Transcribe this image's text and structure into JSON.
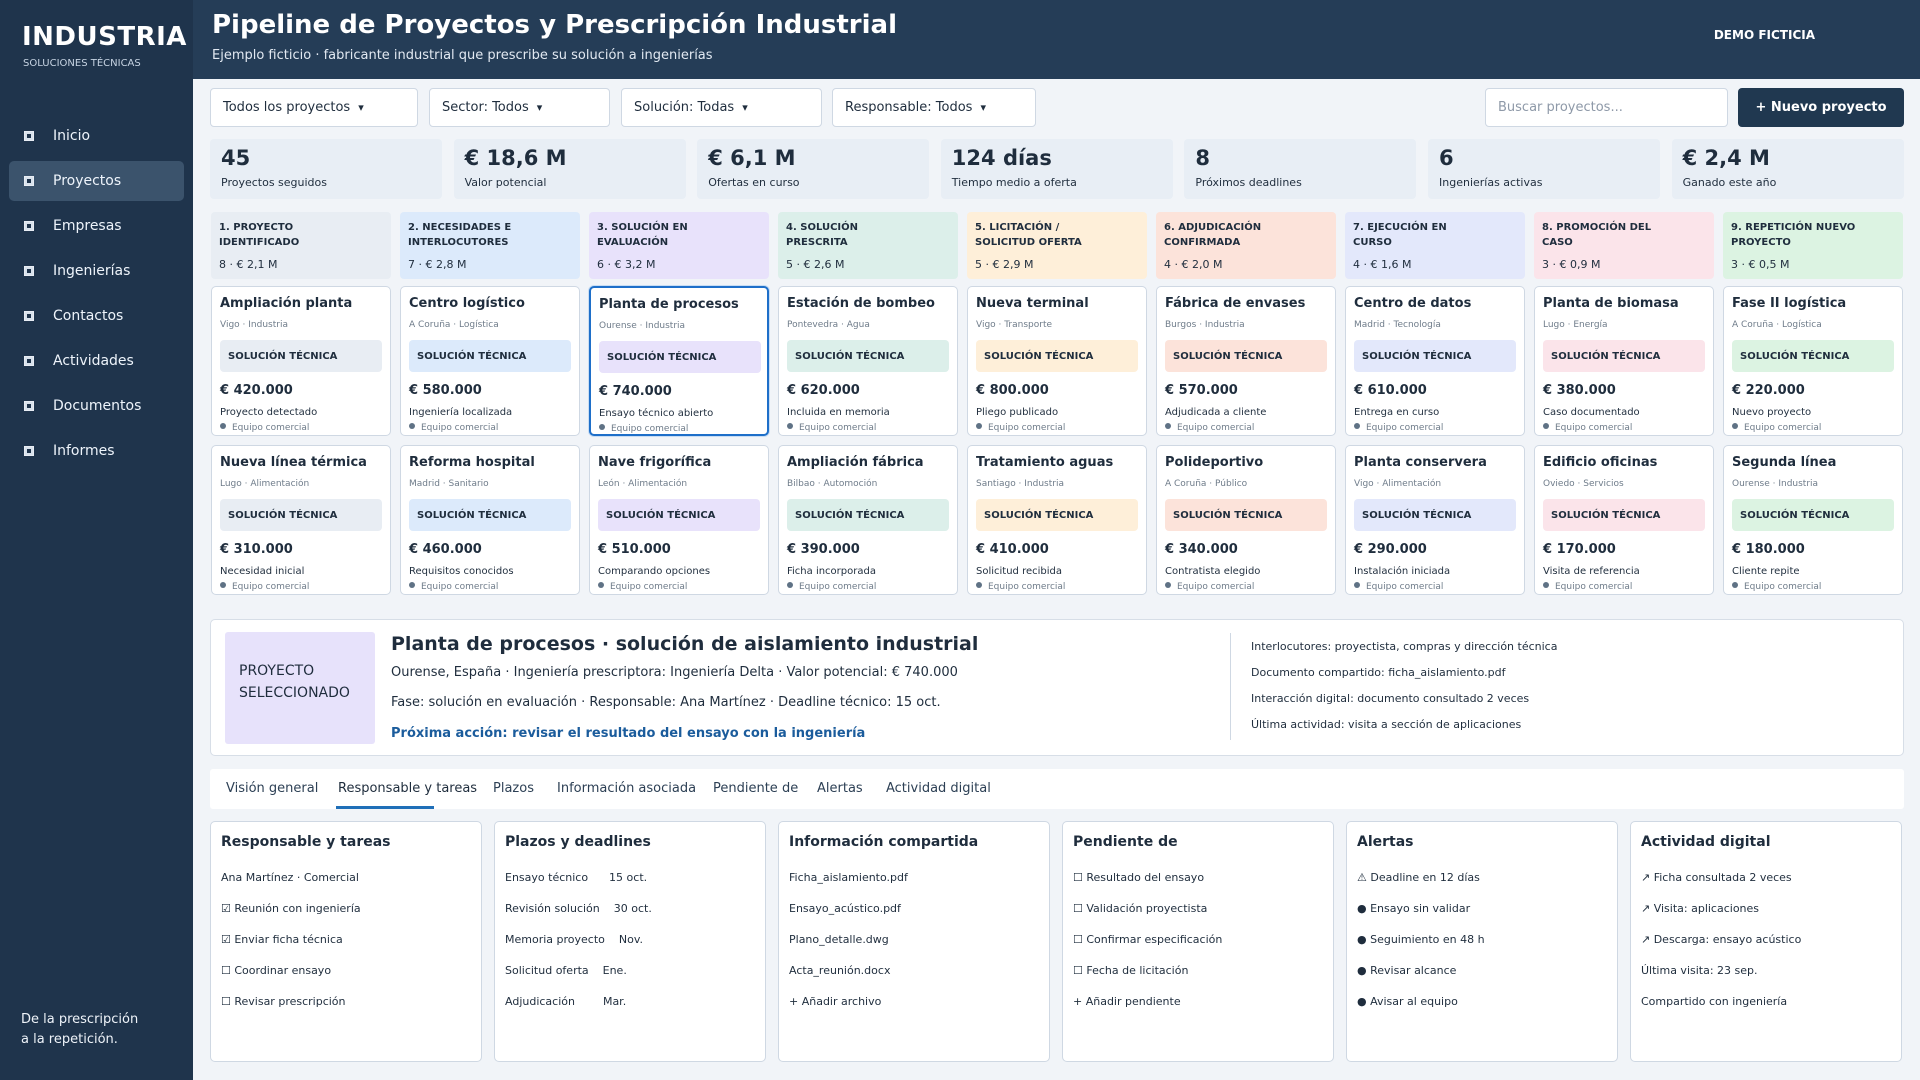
{
  "sidebar": {
    "brand": "INDUSTRIA",
    "brand_sub": "SOLUCIONES TÉCNICAS",
    "items": [
      {
        "label": "Inicio",
        "icon": "square-icon"
      },
      {
        "label": "Proyectos",
        "icon": "square-icon",
        "active": true
      },
      {
        "label": "Empresas",
        "icon": "square-icon"
      },
      {
        "label": "Ingenierías",
        "icon": "square-icon"
      },
      {
        "label": "Contactos",
        "icon": "square-icon"
      },
      {
        "label": "Actividades",
        "icon": "square-icon"
      },
      {
        "label": "Documentos",
        "icon": "square-icon"
      },
      {
        "label": "Informes",
        "icon": "square-icon"
      }
    ],
    "footer": "De la prescripción\na la repetición."
  },
  "header": {
    "title": "Pipeline de Proyectos y Prescripción Industrial",
    "subtitle": "Ejemplo ficticio · fabricante industrial que prescribe su solución a ingenierías",
    "demo": "DEMO FICTICIA"
  },
  "toolbar": {
    "filters": [
      "Todos los proyectos",
      "Sector: Todos",
      "Solución: Todas",
      "Responsable: Todos"
    ],
    "caret": "▾",
    "search_placeholder": "Buscar proyectos...",
    "new_button": "+ Nuevo proyecto"
  },
  "kpis": [
    {
      "value": "45",
      "label": "Proyectos seguidos"
    },
    {
      "value": "€ 18,6 M",
      "label": "Valor potencial"
    },
    {
      "value": "€ 6,1 M",
      "label": "Ofertas en curso"
    },
    {
      "value": "124 días",
      "label": "Tiempo medio a oferta"
    },
    {
      "value": "8",
      "label": "Próximos deadlines"
    },
    {
      "value": "6",
      "label": "Ingenierías activas"
    },
    {
      "value": "€ 2,4 M",
      "label": "Ganado este año"
    }
  ],
  "stages": [
    {
      "name": "1. PROYECTO IDENTIFICADO",
      "meta": "8 · € 2,1 M",
      "color": "#e8edf3",
      "tag": "#e8edf3"
    },
    {
      "name": "2. NECESIDADES E INTERLOCUTORES",
      "meta": "7 · € 2,8 M",
      "color": "#dceafb",
      "tag": "#dceafb"
    },
    {
      "name": "3. SOLUCIÓN EN EVALUACIÓN",
      "meta": "6 · € 3,2 M",
      "color": "#e8e2fb",
      "tag": "#e8e2fb"
    },
    {
      "name": "4. SOLUCIÓN PRESCRITA",
      "meta": "5 · € 2,6 M",
      "color": "#dcefea",
      "tag": "#dcefea"
    },
    {
      "name": "5. LICITACIÓN / SOLICITUD OFERTA",
      "meta": "5 · € 2,9 M",
      "color": "#feefd9",
      "tag": "#feefd9"
    },
    {
      "name": "6. ADJUDICACIÓN CONFIRMADA",
      "meta": "4 · € 2,0 M",
      "color": "#fce3da",
      "tag": "#fce3da"
    },
    {
      "name": "7. EJECUCIÓN EN CURSO",
      "meta": "4 · € 1,6 M",
      "color": "#e3e8fb",
      "tag": "#e3e8fb"
    },
    {
      "name": "8. PROMOCIÓN DEL CASO",
      "meta": "3 · € 0,9 M",
      "color": "#fbe4ea",
      "tag": "#fbe4ea"
    },
    {
      "name": "9. REPETICIÓN NUEVO PROYECTO",
      "meta": "3 · € 0,5 M",
      "color": "#dcf3e2",
      "tag": "#dcf3e2"
    }
  ],
  "cards_row1": [
    {
      "title": "Ampliación planta",
      "loc": "Vigo · Industria",
      "tag": "SOLUCIÓN TÉCNICA",
      "value": "€ 420.000",
      "status": "Proyecto detectado",
      "team": "Equipo comercial"
    },
    {
      "title": "Centro logístico",
      "loc": "A Coruña · Logística",
      "tag": "SOLUCIÓN TÉCNICA",
      "value": "€ 580.000",
      "status": "Ingeniería localizada",
      "team": "Equipo comercial"
    },
    {
      "title": "Planta de procesos",
      "loc": "Ourense · Industria",
      "tag": "SOLUCIÓN TÉCNICA",
      "value": "€ 740.000",
      "status": "Ensayo técnico abierto",
      "team": "Equipo comercial",
      "selected": true
    },
    {
      "title": "Estación de bombeo",
      "loc": "Pontevedra · Agua",
      "tag": "SOLUCIÓN TÉCNICA",
      "value": "€ 620.000",
      "status": "Incluida en memoria",
      "team": "Equipo comercial"
    },
    {
      "title": "Nueva terminal",
      "loc": "Vigo · Transporte",
      "tag": "SOLUCIÓN TÉCNICA",
      "value": "€ 800.000",
      "status": "Pliego publicado",
      "team": "Equipo comercial"
    },
    {
      "title": "Fábrica de envases",
      "loc": "Burgos · Industria",
      "tag": "SOLUCIÓN TÉCNICA",
      "value": "€ 570.000",
      "status": "Adjudicada a cliente",
      "team": "Equipo comercial"
    },
    {
      "title": "Centro de datos",
      "loc": "Madrid · Tecnología",
      "tag": "SOLUCIÓN TÉCNICA",
      "value": "€ 610.000",
      "status": "Entrega en curso",
      "team": "Equipo comercial"
    },
    {
      "title": "Planta de biomasa",
      "loc": "Lugo · Energía",
      "tag": "SOLUCIÓN TÉCNICA",
      "value": "€ 380.000",
      "status": "Caso documentado",
      "team": "Equipo comercial"
    },
    {
      "title": "Fase II logística",
      "loc": "A Coruña · Logística",
      "tag": "SOLUCIÓN TÉCNICA",
      "value": "€ 220.000",
      "status": "Nuevo proyecto",
      "team": "Equipo comercial"
    }
  ],
  "cards_row2": [
    {
      "title": "Nueva línea térmica",
      "loc": "Lugo · Alimentación",
      "tag": "SOLUCIÓN TÉCNICA",
      "value": "€ 310.000",
      "status": "Necesidad inicial",
      "team": "Equipo comercial"
    },
    {
      "title": "Reforma hospital",
      "loc": "Madrid · Sanitario",
      "tag": "SOLUCIÓN TÉCNICA",
      "value": "€ 460.000",
      "status": "Requisitos conocidos",
      "team": "Equipo comercial"
    },
    {
      "title": "Nave frigorífica",
      "loc": "León · Alimentación",
      "tag": "SOLUCIÓN TÉCNICA",
      "value": "€ 510.000",
      "status": "Comparando opciones",
      "team": "Equipo comercial"
    },
    {
      "title": "Ampliación fábrica",
      "loc": "Bilbao · Automoción",
      "tag": "SOLUCIÓN TÉCNICA",
      "value": "€ 390.000",
      "status": "Ficha incorporada",
      "team": "Equipo comercial"
    },
    {
      "title": "Tratamiento aguas",
      "loc": "Santiago · Industria",
      "tag": "SOLUCIÓN TÉCNICA",
      "value": "€ 410.000",
      "status": "Solicitud recibida",
      "team": "Equipo comercial"
    },
    {
      "title": "Polideportivo",
      "loc": "A Coruña · Público",
      "tag": "SOLUCIÓN TÉCNICA",
      "value": "€ 340.000",
      "status": "Contratista elegido",
      "team": "Equipo comercial"
    },
    {
      "title": "Planta conservera",
      "loc": "Vigo · Alimentación",
      "tag": "SOLUCIÓN TÉCNICA",
      "value": "€ 290.000",
      "status": "Instalación iniciada",
      "team": "Equipo comercial"
    },
    {
      "title": "Edificio oficinas",
      "loc": "Oviedo · Servicios",
      "tag": "SOLUCIÓN TÉCNICA",
      "value": "€ 170.000",
      "status": "Visita de referencia",
      "team": "Equipo comercial"
    },
    {
      "title": "Segunda línea",
      "loc": "Ourense · Industria",
      "tag": "SOLUCIÓN TÉCNICA",
      "value": "€ 180.000",
      "status": "Cliente repite",
      "team": "Equipo comercial"
    }
  ],
  "detail": {
    "badge": "PROYECTO SELECCIONADO",
    "title": "Planta de procesos · solución de aislamiento industrial",
    "line1": "Ourense, España   ·   Ingeniería prescriptora: Ingeniería Delta   ·   Valor potencial: € 740.000",
    "line2": "Fase: solución en evaluación   ·   Responsable: Ana Martínez   ·   Deadline técnico: 15 oct.",
    "action": "Próxima acción: revisar el resultado del ensayo con la ingeniería",
    "info": [
      "Interlocutores: proyectista, compras y dirección técnica",
      "Documento compartido: ficha_aislamiento.pdf",
      "Interacción digital: documento consultado 2 veces",
      "Última actividad: visita a sección de aplicaciones"
    ]
  },
  "tabs": [
    "Visión general",
    "Responsable y tareas",
    "Plazos",
    "Información asociada",
    "Pendiente de",
    "Alertas",
    "Actividad digital"
  ],
  "active_tab": "Responsable y tareas",
  "panels": [
    {
      "title": "Responsable y tareas",
      "items": [
        "Ana Martínez · Comercial",
        "☑ Reunión con ingeniería",
        "☑ Enviar ficha técnica",
        "☐ Coordinar ensayo",
        "☐ Revisar prescripción"
      ]
    },
    {
      "title": "Plazos y deadlines",
      "items": [
        "Ensayo técnico      15 oct.",
        "Revisión solución    30 oct.",
        "Memoria proyecto    Nov.",
        "Solicitud oferta    Ene.",
        "Adjudicación        Mar."
      ]
    },
    {
      "title": "Información compartida",
      "items": [
        "Ficha_aislamiento.pdf",
        "Ensayo_acústico.pdf",
        "Plano_detalle.dwg",
        "Acta_reunión.docx",
        "+ Añadir archivo"
      ]
    },
    {
      "title": "Pendiente de",
      "items": [
        "☐ Resultado del ensayo",
        "☐ Validación proyectista",
        "☐ Confirmar especificación",
        "☐ Fecha de licitación",
        "+ Añadir pendiente"
      ]
    },
    {
      "title": "Alertas",
      "items": [
        "⚠ Deadline en 12 días",
        "● Ensayo sin validar",
        "● Seguimiento en 48 h",
        "● Revisar alcance",
        "● Avisar al equipo"
      ]
    },
    {
      "title": "Actividad digital",
      "items": [
        "↗ Ficha consultada 2 veces",
        "↗ Visita: aplicaciones",
        "↗ Descarga: ensayo acústico",
        "Última visita: 23 sep.",
        "Compartido con ingeniería"
      ]
    }
  ]
}
